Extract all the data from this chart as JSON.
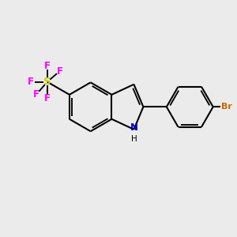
{
  "background_color": "#ebebeb",
  "bond_color": "#000000",
  "N_color": "#0000cd",
  "S_color": "#cccc00",
  "F_color": "#ff00ff",
  "Br_color": "#cc6600",
  "line_width": 1.5,
  "figsize": [
    3.0,
    3.0
  ],
  "dpi": 100,
  "xlim": [
    0,
    10
  ],
  "ylim": [
    0,
    10
  ]
}
